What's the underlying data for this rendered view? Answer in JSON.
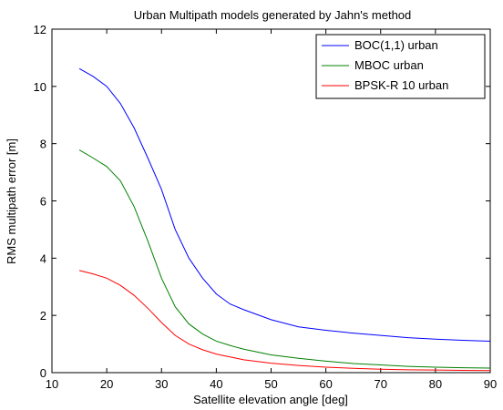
{
  "chart_data": {
    "type": "line",
    "title": "Urban Multipath models generated by Jahn's method",
    "xlabel": "Satellite elevation angle [deg]",
    "ylabel": "RMS multipath error [m]",
    "xlim": [
      10,
      90
    ],
    "ylim": [
      0,
      12
    ],
    "xticks": [
      10,
      20,
      30,
      40,
      50,
      60,
      70,
      80,
      90
    ],
    "yticks": [
      0,
      2,
      4,
      6,
      8,
      10,
      12
    ],
    "grid": false,
    "legend_position": "top-right",
    "x": [
      15,
      17.5,
      20,
      22.5,
      25,
      27.5,
      30,
      32.5,
      35,
      37.5,
      40,
      42.5,
      45,
      50,
      55,
      60,
      65,
      70,
      75,
      80,
      85,
      90
    ],
    "series": [
      {
        "name": "BOC(1,1) urban",
        "color": "#0000ff",
        "values": [
          10.62,
          10.35,
          10.0,
          9.4,
          8.55,
          7.5,
          6.4,
          5.0,
          4.0,
          3.3,
          2.75,
          2.4,
          2.2,
          1.85,
          1.6,
          1.48,
          1.38,
          1.3,
          1.22,
          1.17,
          1.13,
          1.1
        ]
      },
      {
        "name": "MBOC urban",
        "color": "#008000",
        "values": [
          7.78,
          7.5,
          7.2,
          6.7,
          5.8,
          4.6,
          3.3,
          2.3,
          1.7,
          1.35,
          1.1,
          0.95,
          0.82,
          0.62,
          0.5,
          0.4,
          0.32,
          0.27,
          0.22,
          0.19,
          0.17,
          0.16
        ]
      },
      {
        "name": "BPSK-R 10 urban",
        "color": "#ff0000",
        "values": [
          3.57,
          3.45,
          3.3,
          3.05,
          2.7,
          2.25,
          1.75,
          1.3,
          1.0,
          0.8,
          0.65,
          0.55,
          0.45,
          0.33,
          0.25,
          0.19,
          0.15,
          0.12,
          0.1,
          0.09,
          0.08,
          0.07
        ]
      }
    ]
  }
}
